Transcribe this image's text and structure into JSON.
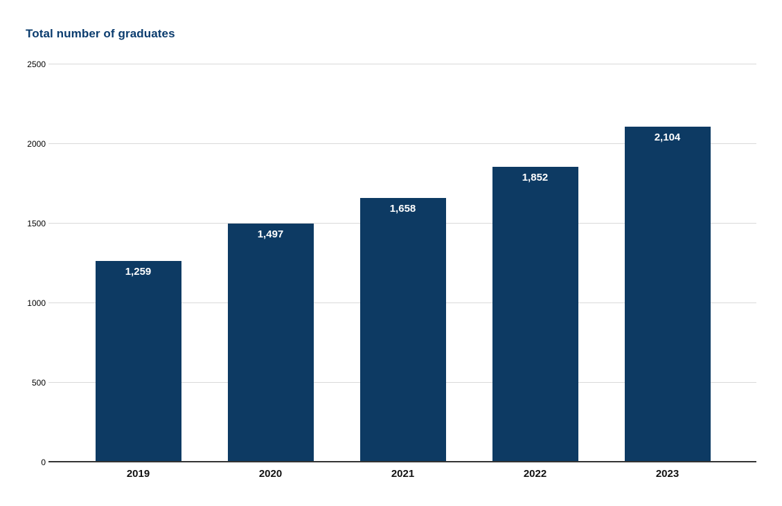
{
  "page": {
    "background_color": "#ffffff"
  },
  "chart_data": {
    "type": "bar",
    "title": "Total number of graduates",
    "categories": [
      "2019",
      "2020",
      "2021",
      "2022",
      "2023"
    ],
    "values": [
      1259,
      1497,
      1658,
      1852,
      2104
    ],
    "value_labels": [
      "1,259",
      "1,497",
      "1,658",
      "1,852",
      "2,104"
    ],
    "xlabel": "",
    "ylabel": "",
    "ylim": [
      0,
      2500
    ],
    "yticks": [
      0,
      500,
      1000,
      1500,
      2000,
      2500
    ],
    "ytick_labels": [
      "0",
      "500",
      "1000",
      "1500",
      "2000",
      "2500"
    ],
    "grid": true,
    "legend_position": "none",
    "colors": {
      "bar": "#0d3a63",
      "title": "#0b3c6e",
      "value_label": "#ffffff",
      "gridline": "#d9d9d9",
      "axis_line": "#333333",
      "x_tick_label": "#111111",
      "y_tick_label": "#000000"
    }
  }
}
